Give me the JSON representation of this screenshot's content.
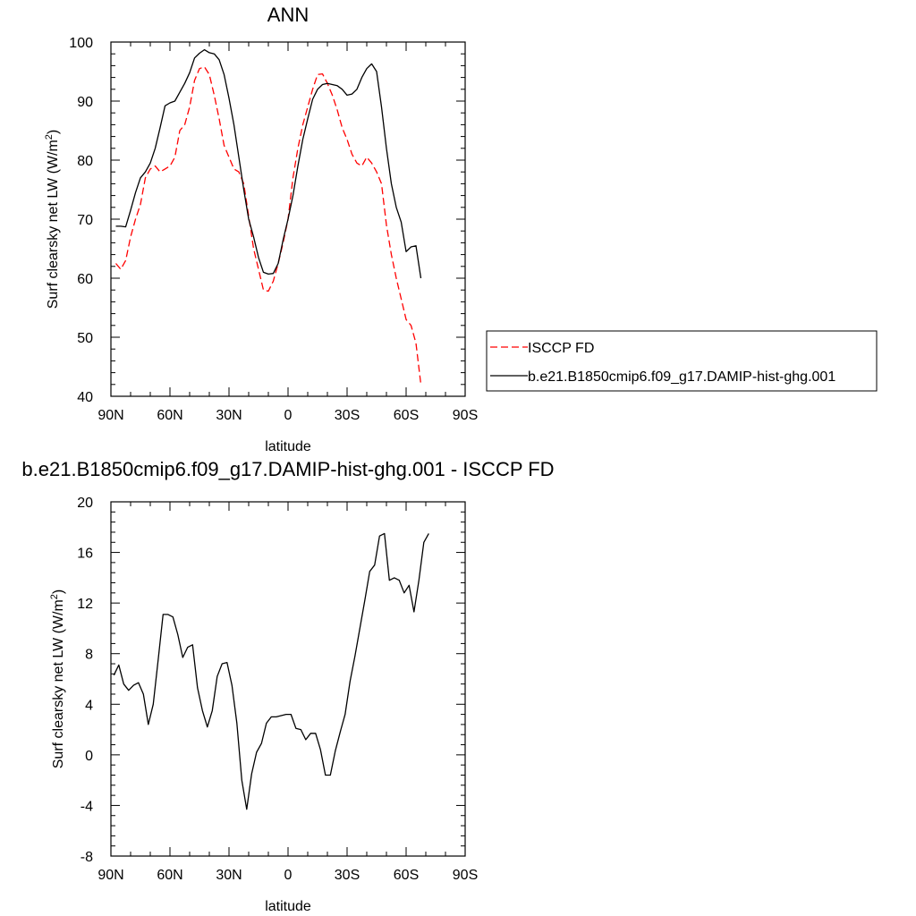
{
  "chart_data": [
    {
      "type": "line",
      "title": "ANN",
      "xlabel": "latitude",
      "ylabel": "Surf clearsky net LW (W/m²)",
      "ylabel_main": "Surf clearsky net LW (W/m",
      "ylabel_sup": "2",
      "ylabel_tail": ")",
      "xlim": [
        90,
        -90
      ],
      "ylim": [
        40,
        100
      ],
      "xticks": [
        {
          "value": 90,
          "label": "90N"
        },
        {
          "value": 60,
          "label": "60N"
        },
        {
          "value": 30,
          "label": "30N"
        },
        {
          "value": 0,
          "label": "0"
        },
        {
          "value": -30,
          "label": "30S"
        },
        {
          "value": -60,
          "label": "60S"
        },
        {
          "value": -90,
          "label": "90S"
        }
      ],
      "yticks": [
        40,
        50,
        60,
        70,
        80,
        90,
        100
      ],
      "legend_position": "right",
      "series": [
        {
          "name": "ISCCP FD",
          "color": "#ff0000",
          "dash": "dashed",
          "points": [
            [
              87.5,
              62.5
            ],
            [
              85,
              61.5
            ],
            [
              82.5,
              63
            ],
            [
              80,
              67
            ],
            [
              77.5,
              70
            ],
            [
              75,
              72.5
            ],
            [
              72.5,
              77
            ],
            [
              70,
              78.5
            ],
            [
              67.5,
              79
            ],
            [
              65,
              78
            ],
            [
              62.5,
              78.5
            ],
            [
              60,
              79
            ],
            [
              57.5,
              80.5
            ],
            [
              55,
              85
            ],
            [
              52.5,
              86
            ],
            [
              50,
              89
            ],
            [
              47.5,
              93.5
            ],
            [
              45,
              95.5
            ],
            [
              42.5,
              95.8
            ],
            [
              40,
              94.5
            ],
            [
              37.5,
              91
            ],
            [
              35,
              87
            ],
            [
              32.5,
              82.5
            ],
            [
              30,
              80.5
            ],
            [
              27.5,
              78.5
            ],
            [
              25,
              78
            ],
            [
              22.5,
              76
            ],
            [
              20,
              70.5
            ],
            [
              17.5,
              65
            ],
            [
              15,
              61.5
            ],
            [
              12.5,
              58
            ],
            [
              10,
              57.8
            ],
            [
              7.5,
              59.5
            ],
            [
              5,
              62.5
            ],
            [
              2.5,
              66
            ],
            [
              0,
              70
            ],
            [
              -2.5,
              77
            ],
            [
              -5,
              82
            ],
            [
              -7.5,
              86
            ],
            [
              -10,
              89
            ],
            [
              -12.5,
              92
            ],
            [
              -15,
              94.5
            ],
            [
              -17.5,
              94.6
            ],
            [
              -20,
              93
            ],
            [
              -22.5,
              91
            ],
            [
              -25,
              88.5
            ],
            [
              -27.5,
              85.5
            ],
            [
              -30,
              83.5
            ],
            [
              -32.5,
              81
            ],
            [
              -35,
              79.5
            ],
            [
              -37.5,
              79
            ],
            [
              -40,
              80.5
            ],
            [
              -42.5,
              79.5
            ],
            [
              -45,
              78
            ],
            [
              -47.5,
              76
            ],
            [
              -50,
              69
            ],
            [
              -52.5,
              64
            ],
            [
              -55,
              60
            ],
            [
              -57.5,
              56.5
            ],
            [
              -60,
              53
            ],
            [
              -62.5,
              52
            ],
            [
              -65,
              49
            ],
            [
              -67.5,
              42
            ]
          ]
        },
        {
          "name": "b.e21.B1850cmip6.f09_g17.DAMIP-hist-ghg.001",
          "color": "#000000",
          "dash": "solid",
          "points": [
            [
              87.5,
              68.8
            ],
            [
              85,
              68.8
            ],
            [
              82.5,
              68.7
            ],
            [
              80,
              71.5
            ],
            [
              77.5,
              74.5
            ],
            [
              75,
              77
            ],
            [
              72.5,
              78
            ],
            [
              70,
              79.5
            ],
            [
              67.5,
              82
            ],
            [
              65,
              85.5
            ],
            [
              62.5,
              89.2
            ],
            [
              60,
              89.7
            ],
            [
              57.5,
              90
            ],
            [
              55,
              91.5
            ],
            [
              52.5,
              93
            ],
            [
              50,
              94.8
            ],
            [
              47.5,
              97.3
            ],
            [
              45,
              98.1
            ],
            [
              42.5,
              98.7
            ],
            [
              40,
              98.2
            ],
            [
              37.5,
              98
            ],
            [
              35,
              97
            ],
            [
              32.5,
              94.5
            ],
            [
              30,
              90.5
            ],
            [
              27.5,
              86
            ],
            [
              25,
              80.5
            ],
            [
              22.5,
              75
            ],
            [
              20,
              70
            ],
            [
              17.5,
              67
            ],
            [
              15,
              63.5
            ],
            [
              12.5,
              61
            ],
            [
              10,
              60.7
            ],
            [
              7.5,
              60.8
            ],
            [
              5,
              62.5
            ],
            [
              2.5,
              66.5
            ],
            [
              0,
              70
            ],
            [
              -2.5,
              74
            ],
            [
              -5,
              79
            ],
            [
              -7.5,
              83.5
            ],
            [
              -10,
              87
            ],
            [
              -12.5,
              90.3
            ],
            [
              -15,
              92
            ],
            [
              -17.5,
              92.8
            ],
            [
              -20,
              93
            ],
            [
              -22.5,
              92.8
            ],
            [
              -25,
              92.6
            ],
            [
              -27.5,
              92
            ],
            [
              -30,
              91
            ],
            [
              -32.5,
              91.2
            ],
            [
              -35,
              92
            ],
            [
              -37.5,
              94
            ],
            [
              -40,
              95.5
            ],
            [
              -42.5,
              96.3
            ],
            [
              -45,
              95
            ],
            [
              -47.5,
              89
            ],
            [
              -50,
              82
            ],
            [
              -52.5,
              76
            ],
            [
              -55,
              72
            ],
            [
              -57.5,
              69.5
            ],
            [
              -60,
              64.5
            ],
            [
              -62.5,
              65.3
            ],
            [
              -65,
              65.5
            ],
            [
              -67.5,
              60
            ]
          ]
        }
      ]
    },
    {
      "type": "line",
      "title": "b.e21.B1850cmip6.f09_g17.DAMIP-hist-ghg.001 - ISCCP FD",
      "xlabel": "latitude",
      "ylabel": "Surf clearsky net LW (W/m²)",
      "ylabel_main": "Surf clearsky net LW (W/m",
      "ylabel_sup": "2",
      "ylabel_tail": ")",
      "xlim": [
        90,
        -90
      ],
      "ylim": [
        -8,
        20
      ],
      "xticks": [
        {
          "value": 90,
          "label": "90N"
        },
        {
          "value": 60,
          "label": "60N"
        },
        {
          "value": 30,
          "label": "30N"
        },
        {
          "value": 0,
          "label": "0"
        },
        {
          "value": -30,
          "label": "30S"
        },
        {
          "value": -60,
          "label": "60S"
        },
        {
          "value": -90,
          "label": "90S"
        }
      ],
      "yticks": [
        -8,
        -4,
        0,
        4,
        8,
        12,
        16,
        20
      ],
      "series": [
        {
          "color": "#000000",
          "dash": "solid",
          "points": [
            [
              88.5,
              6.3
            ],
            [
              86,
              7.1
            ],
            [
              83.5,
              5.6
            ],
            [
              81,
              5.1
            ],
            [
              78.5,
              5.5
            ],
            [
              76,
              5.7
            ],
            [
              73.5,
              4.8
            ],
            [
              71,
              2.4
            ],
            [
              68.5,
              4.0
            ],
            [
              66,
              7.5
            ],
            [
              63.5,
              11.1
            ],
            [
              61,
              11.1
            ],
            [
              58.5,
              10.9
            ],
            [
              56,
              9.5
            ],
            [
              53.5,
              7.7
            ],
            [
              51,
              8.5
            ],
            [
              48.5,
              8.7
            ],
            [
              46,
              5.3
            ],
            [
              43.5,
              3.5
            ],
            [
              41,
              2.2
            ],
            [
              38.5,
              3.5
            ],
            [
              36,
              6.2
            ],
            [
              33.5,
              7.2
            ],
            [
              31,
              7.3
            ],
            [
              28.5,
              5.5
            ],
            [
              26,
              2.5
            ],
            [
              23.5,
              -2.0
            ],
            [
              21,
              -4.3
            ],
            [
              18.5,
              -1.5
            ],
            [
              16,
              0.2
            ],
            [
              13.5,
              0.9
            ],
            [
              11,
              2.5
            ],
            [
              8.5,
              3.0
            ],
            [
              6,
              3.0
            ],
            [
              3.5,
              3.1
            ],
            [
              1,
              3.2
            ],
            [
              -1.5,
              3.2
            ],
            [
              -4,
              2.1
            ],
            [
              -6.5,
              2.0
            ],
            [
              -9,
              1.2
            ],
            [
              -11.5,
              1.7
            ],
            [
              -14,
              1.7
            ],
            [
              -16.5,
              0.4
            ],
            [
              -19,
              -1.6
            ],
            [
              -21.5,
              -1.6
            ],
            [
              -24,
              0.3
            ],
            [
              -26.5,
              1.8
            ],
            [
              -29,
              3.2
            ],
            [
              -31.5,
              5.8
            ],
            [
              -34,
              7.8
            ],
            [
              -36.5,
              10.0
            ],
            [
              -39,
              12.2
            ],
            [
              -41.5,
              14.5
            ],
            [
              -44,
              15.0
            ],
            [
              -46.5,
              17.3
            ],
            [
              -49,
              17.5
            ],
            [
              -51.5,
              13.8
            ],
            [
              -54,
              14.0
            ],
            [
              -56.5,
              13.8
            ],
            [
              -59,
              12.8
            ],
            [
              -61.5,
              13.4
            ],
            [
              -64,
              11.3
            ],
            [
              -66.5,
              13.8
            ],
            [
              -69,
              16.8
            ],
            [
              -71.5,
              17.5
            ]
          ]
        }
      ]
    }
  ]
}
